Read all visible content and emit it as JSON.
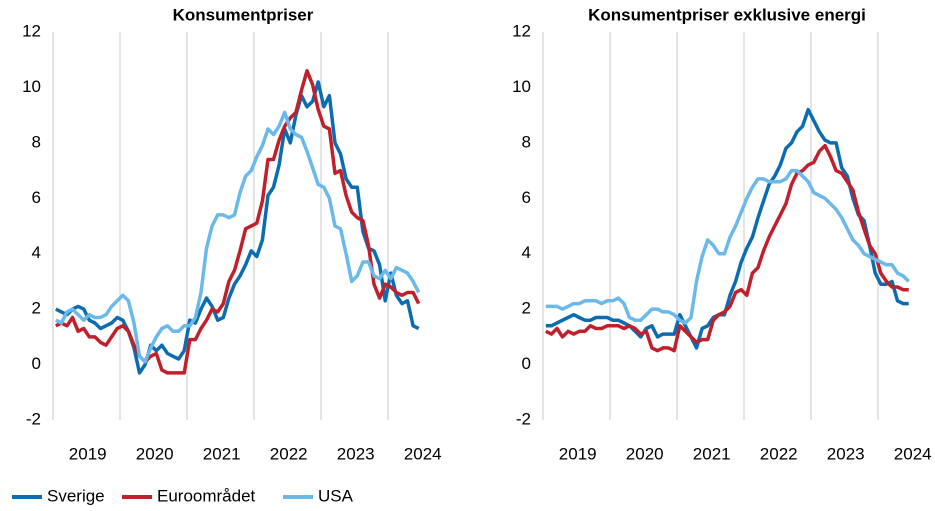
{
  "chart_data": [
    {
      "type": "line",
      "title": "Konsumentpriser",
      "categories": [
        null,
        null,
        null,
        null,
        null,
        "2019",
        null,
        null,
        null,
        null,
        null,
        null,
        null,
        null,
        null,
        null,
        null,
        "2020",
        null,
        null,
        null,
        null,
        null,
        null,
        null,
        null,
        null,
        null,
        null,
        "2021",
        null,
        null,
        null,
        null,
        null,
        null,
        null,
        null,
        null,
        null,
        null,
        "2022",
        null,
        null,
        null,
        null,
        null,
        null,
        null,
        null,
        null,
        null,
        null,
        "2023",
        null,
        null,
        null,
        null,
        null,
        null,
        null,
        null,
        null,
        null,
        null,
        "2024"
      ],
      "ylim": [
        -2,
        12
      ],
      "yticks": [
        -2,
        0,
        2,
        4,
        6,
        8,
        10,
        12
      ],
      "series": [
        {
          "name": "Sverige",
          "color": "#0b6cb2",
          "values": [
            2.0,
            1.9,
            1.8,
            2.0,
            2.1,
            2.0,
            1.6,
            1.5,
            1.3,
            1.4,
            1.5,
            1.7,
            1.6,
            1.2,
            0.6,
            -0.3,
            0.0,
            0.7,
            0.5,
            0.7,
            0.4,
            0.3,
            0.2,
            0.5,
            1.6,
            1.5,
            2.0,
            2.4,
            2.1,
            1.6,
            1.7,
            2.4,
            2.9,
            3.2,
            3.6,
            4.1,
            3.9,
            4.5,
            6.1,
            6.4,
            7.2,
            8.5,
            8.0,
            9.0,
            9.7,
            9.3,
            9.5,
            10.2,
            9.3,
            9.7,
            8.0,
            7.6,
            6.7,
            6.4,
            6.4,
            4.8,
            4.2,
            4.1,
            3.6,
            2.3,
            3.3,
            2.5,
            2.2,
            2.3,
            1.4,
            1.3
          ]
        },
        {
          "name": "Euroområdet",
          "color": "#c0202b",
          "values": [
            1.4,
            1.5,
            1.4,
            1.7,
            1.2,
            1.3,
            1.0,
            1.0,
            0.8,
            0.7,
            1.0,
            1.3,
            1.4,
            1.2,
            0.7,
            0.3,
            0.1,
            0.3,
            0.4,
            -0.2,
            -0.3,
            -0.3,
            -0.3,
            -0.3,
            0.9,
            0.9,
            1.3,
            1.6,
            2.0,
            1.9,
            2.2,
            3.0,
            3.4,
            4.1,
            4.9,
            5.0,
            5.1,
            5.9,
            7.4,
            7.4,
            8.1,
            8.6,
            8.9,
            9.1,
            9.9,
            10.6,
            10.1,
            9.2,
            8.6,
            8.5,
            6.9,
            7.0,
            6.1,
            5.5,
            5.3,
            5.2,
            4.3,
            2.9,
            2.4,
            2.9,
            2.8,
            2.6,
            2.5,
            2.6,
            2.6,
            2.2
          ]
        },
        {
          "name": "USA",
          "color": "#6bb8ea",
          "values": [
            1.6,
            1.5,
            1.9,
            2.0,
            1.8,
            1.6,
            1.8,
            1.7,
            1.7,
            1.8,
            2.1,
            2.3,
            2.5,
            2.3,
            1.5,
            0.3,
            0.1,
            0.6,
            1.0,
            1.3,
            1.4,
            1.2,
            1.2,
            1.4,
            1.4,
            1.7,
            2.6,
            4.2,
            5.0,
            5.4,
            5.4,
            5.3,
            5.4,
            6.2,
            6.8,
            7.0,
            7.5,
            7.9,
            8.5,
            8.3,
            8.6,
            9.1,
            8.5,
            8.3,
            8.2,
            7.7,
            7.1,
            6.5,
            6.4,
            6.0,
            5.0,
            4.9,
            4.0,
            3.0,
            3.2,
            3.7,
            3.7,
            3.2,
            3.1,
            3.4,
            3.1,
            3.5,
            3.4,
            3.3,
            3.0,
            2.6
          ]
        }
      ]
    },
    {
      "type": "line",
      "title": "Konsumentpriser exklusive energi",
      "categories": [
        null,
        null,
        null,
        null,
        null,
        "2019",
        null,
        null,
        null,
        null,
        null,
        null,
        null,
        null,
        null,
        null,
        null,
        "2020",
        null,
        null,
        null,
        null,
        null,
        null,
        null,
        null,
        null,
        null,
        null,
        "2021",
        null,
        null,
        null,
        null,
        null,
        null,
        null,
        null,
        null,
        null,
        null,
        "2022",
        null,
        null,
        null,
        null,
        null,
        null,
        null,
        null,
        null,
        null,
        null,
        "2023",
        null,
        null,
        null,
        null,
        null,
        null,
        null,
        null,
        null,
        null,
        null,
        "2024"
      ],
      "ylim": [
        -2,
        12
      ],
      "yticks": [
        -2,
        0,
        2,
        4,
        6,
        8,
        10,
        12
      ],
      "series": [
        {
          "color": "#0b6cb2",
          "values": [
            1.4,
            1.4,
            1.5,
            1.6,
            1.7,
            1.8,
            1.7,
            1.6,
            1.6,
            1.7,
            1.7,
            1.7,
            1.6,
            1.6,
            1.5,
            1.4,
            1.2,
            1.0,
            1.3,
            1.4,
            1.0,
            1.1,
            1.1,
            1.1,
            1.8,
            1.4,
            1.0,
            0.6,
            1.3,
            1.4,
            1.7,
            1.8,
            1.8,
            2.5,
            3.0,
            3.7,
            4.2,
            4.6,
            5.3,
            5.9,
            6.5,
            6.8,
            7.2,
            7.8,
            8.0,
            8.4,
            8.6,
            9.2,
            8.8,
            8.4,
            8.1,
            8.0,
            8.0,
            7.1,
            6.8,
            6.0,
            5.4,
            5.2,
            4.3,
            3.3,
            2.9,
            2.9,
            3.0,
            2.3,
            2.2,
            2.2
          ]
        },
        {
          "color": "#c0202b",
          "values": [
            1.2,
            1.1,
            1.3,
            1.0,
            1.2,
            1.1,
            1.2,
            1.2,
            1.4,
            1.3,
            1.3,
            1.4,
            1.4,
            1.4,
            1.3,
            1.4,
            1.3,
            1.1,
            1.2,
            0.6,
            0.5,
            0.6,
            0.6,
            0.5,
            1.4,
            1.2,
            1.0,
            0.8,
            0.9,
            0.9,
            1.6,
            1.8,
            1.9,
            2.1,
            2.6,
            2.7,
            2.5,
            3.3,
            3.5,
            4.1,
            4.6,
            5.0,
            5.4,
            5.8,
            6.5,
            6.9,
            7.0,
            7.2,
            7.3,
            7.7,
            7.9,
            7.5,
            7.0,
            6.9,
            6.6,
            6.3,
            5.5,
            4.9,
            4.3,
            4.0,
            3.3,
            3.0,
            2.8,
            2.8,
            2.7,
            2.7
          ]
        },
        {
          "color": "#6bb8ea",
          "values": [
            2.1,
            2.1,
            2.1,
            2.0,
            2.1,
            2.2,
            2.2,
            2.3,
            2.3,
            2.3,
            2.2,
            2.3,
            2.3,
            2.4,
            2.2,
            1.7,
            1.6,
            1.6,
            1.8,
            2.0,
            2.0,
            1.9,
            1.9,
            1.8,
            1.6,
            1.5,
            1.7,
            3.0,
            3.9,
            4.5,
            4.3,
            4.0,
            4.0,
            4.6,
            5.0,
            5.5,
            6.0,
            6.4,
            6.7,
            6.7,
            6.6,
            6.6,
            6.6,
            6.7,
            7.0,
            7.0,
            6.8,
            6.6,
            6.2,
            6.1,
            6.0,
            5.8,
            5.6,
            5.3,
            4.9,
            4.5,
            4.3,
            4.0,
            3.9,
            3.8,
            3.7,
            3.6,
            3.6,
            3.3,
            3.2,
            3.0
          ]
        }
      ]
    }
  ]
}
